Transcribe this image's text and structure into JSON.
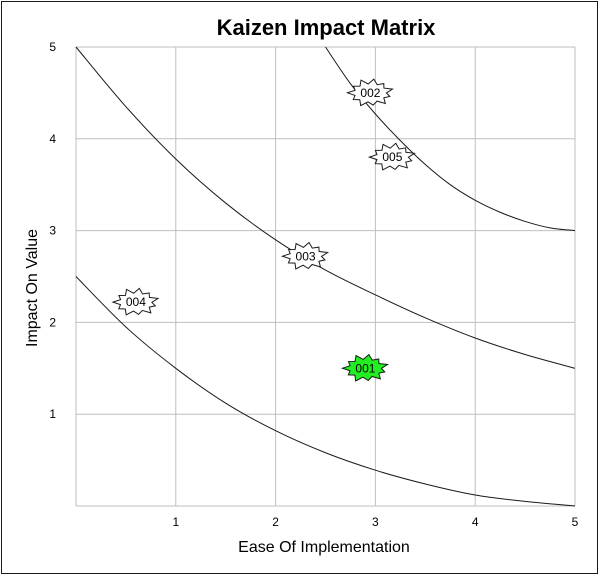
{
  "chart_data": {
    "type": "scatter",
    "title": "Kaizen Impact Matrix",
    "xlabel": "Ease Of Implementation",
    "ylabel": "Impact On Value",
    "xlim": [
      0,
      5
    ],
    "ylim": [
      0,
      5
    ],
    "xticks": [
      "1",
      "2",
      "3",
      "4",
      "5"
    ],
    "yticks": [
      "1",
      "2",
      "3",
      "4",
      "5"
    ],
    "grid": true,
    "points": [
      {
        "label": "001",
        "x": 2.9,
        "y": 1.5,
        "color": "#22ee22"
      },
      {
        "label": "002",
        "x": 2.95,
        "y": 4.5,
        "color": "#ffffff"
      },
      {
        "label": "003",
        "x": 2.3,
        "y": 2.72,
        "color": "#ffffff"
      },
      {
        "label": "004",
        "x": 0.6,
        "y": 2.22,
        "color": "#ffffff"
      },
      {
        "label": "005",
        "x": 3.17,
        "y": 3.8,
        "color": "#ffffff"
      }
    ],
    "curves": [
      {
        "x": [
          0,
          0.5,
          1,
          1.5,
          2,
          2.5,
          3,
          3.5,
          4,
          4.5,
          5
        ],
        "y": [
          2.5,
          1.95,
          1.5,
          1.12,
          0.82,
          0.58,
          0.39,
          0.24,
          0.12,
          0.05,
          0.0
        ]
      },
      {
        "x": [
          0,
          0.5,
          1,
          1.5,
          2,
          2.5,
          3,
          3.5,
          4,
          4.5,
          5
        ],
        "y": [
          5.0,
          4.35,
          3.78,
          3.3,
          2.9,
          2.57,
          2.3,
          2.05,
          1.83,
          1.65,
          1.5
        ]
      },
      {
        "x": [
          2.5,
          2.75,
          3,
          3.25,
          3.5,
          3.75,
          4,
          4.25,
          4.5,
          4.75,
          5
        ],
        "y": [
          5.0,
          4.6,
          4.27,
          3.98,
          3.72,
          3.5,
          3.33,
          3.2,
          3.1,
          3.03,
          3.0
        ]
      }
    ],
    "colors": {
      "curve": "#1a1a1a",
      "grid": "#bfbfbf",
      "marker_stroke": "#1a1a1a"
    }
  }
}
